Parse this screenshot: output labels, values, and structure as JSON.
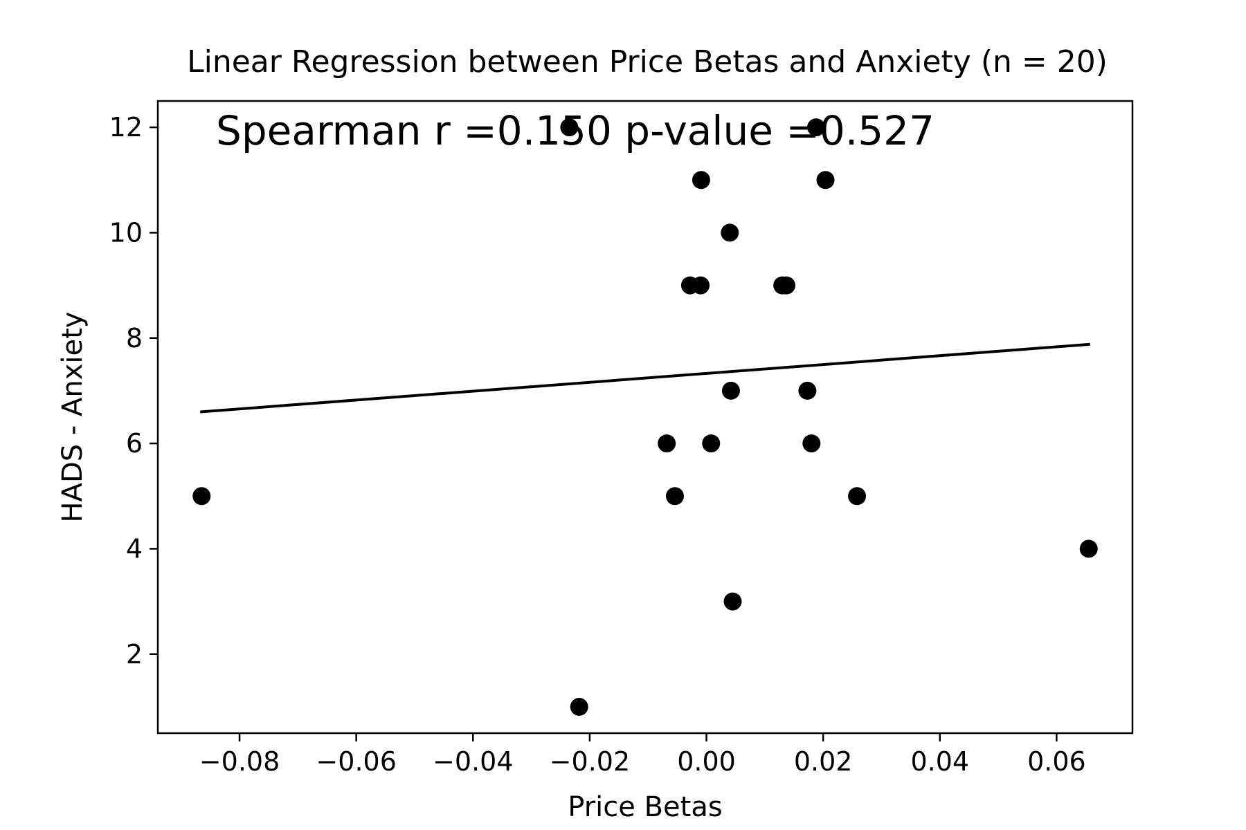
{
  "chart_data": {
    "type": "scatter",
    "title": "Linear Regression between Price Betas and Anxiety (n = 20)",
    "xlabel": "Price Betas",
    "ylabel": "HADS - Anxiety",
    "xlim": [
      -0.094,
      0.073
    ],
    "ylim": [
      0.5,
      12.5
    ],
    "xticks": [
      -0.08,
      -0.06,
      -0.04,
      -0.02,
      0.0,
      0.02,
      0.04,
      0.06
    ],
    "xtick_labels": [
      "−0.08",
      "−0.06",
      "−0.04",
      "−0.02",
      "0.00",
      "0.02",
      "0.04",
      "0.06"
    ],
    "yticks": [
      2,
      4,
      6,
      8,
      10,
      12
    ],
    "ytick_labels": [
      "2",
      "4",
      "6",
      "8",
      "10",
      "12"
    ],
    "grid": false,
    "annotation": "Spearman r =0.150 p-value =0.527",
    "points": [
      {
        "x": -0.0865,
        "y": 5
      },
      {
        "x": -0.0235,
        "y": 12
      },
      {
        "x": -0.0218,
        "y": 1
      },
      {
        "x": -0.0068,
        "y": 6
      },
      {
        "x": -0.0054,
        "y": 5
      },
      {
        "x": -0.0028,
        "y": 9
      },
      {
        "x": -0.001,
        "y": 9
      },
      {
        "x": -0.0009,
        "y": 11
      },
      {
        "x": 0.0008,
        "y": 6
      },
      {
        "x": 0.004,
        "y": 10
      },
      {
        "x": 0.0042,
        "y": 7
      },
      {
        "x": 0.0045,
        "y": 3
      },
      {
        "x": 0.013,
        "y": 9
      },
      {
        "x": 0.0137,
        "y": 9
      },
      {
        "x": 0.0173,
        "y": 7
      },
      {
        "x": 0.018,
        "y": 6
      },
      {
        "x": 0.0188,
        "y": 12
      },
      {
        "x": 0.0204,
        "y": 11
      },
      {
        "x": 0.0258,
        "y": 5
      },
      {
        "x": 0.0655,
        "y": 4
      }
    ],
    "regression_line": {
      "x": [
        -0.0865,
        0.0655
      ],
      "y": [
        6.6,
        7.88
      ]
    },
    "colors": {
      "points": "#000000",
      "line": "#000000",
      "axes": "#000000"
    }
  }
}
